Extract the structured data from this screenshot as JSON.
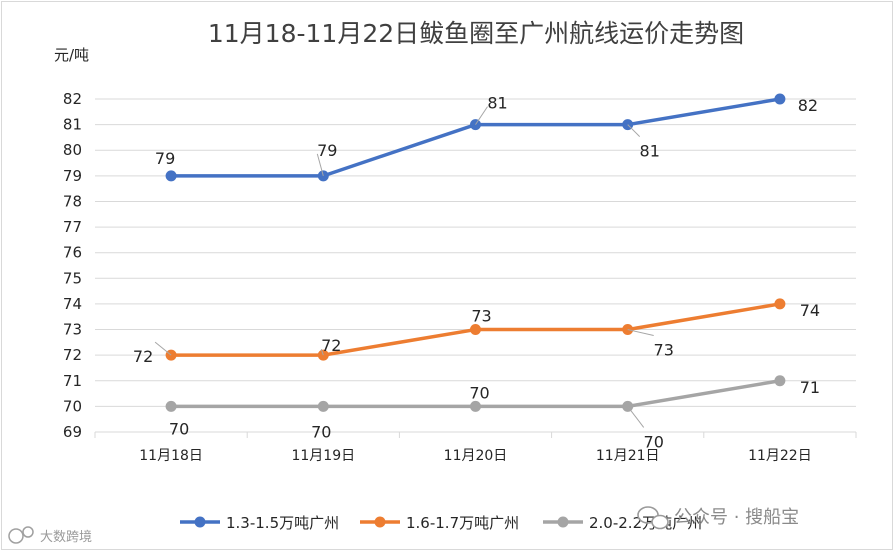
{
  "chart_data": {
    "type": "line",
    "title": "11月18-11月22日鲅鱼圈至广州航线运价走势图",
    "ylabel": "元/吨",
    "xlabel": "",
    "categories": [
      "11月18日",
      "11月19日",
      "11月20日",
      "11月21日",
      "11月22日"
    ],
    "ylim": [
      69,
      82
    ],
    "yticks": [
      69,
      70,
      71,
      72,
      73,
      74,
      75,
      76,
      77,
      78,
      79,
      80,
      81,
      82
    ],
    "grid": true,
    "legend_position": "bottom",
    "series": [
      {
        "name": "1.3-1.5万吨广州",
        "color": "#4472c4",
        "values": [
          79,
          79,
          81,
          81,
          82
        ]
      },
      {
        "name": "1.6-1.7万吨广州",
        "color": "#ed7d31",
        "values": [
          72,
          72,
          73,
          73,
          74
        ]
      },
      {
        "name": "2.0-2.2万吨广州",
        "color": "#a5a5a5",
        "values": [
          70,
          70,
          70,
          70,
          71
        ]
      }
    ]
  },
  "watermark": {
    "wechat_text": "公众号 · 搜船宝",
    "corner_text": "大数跨境"
  }
}
